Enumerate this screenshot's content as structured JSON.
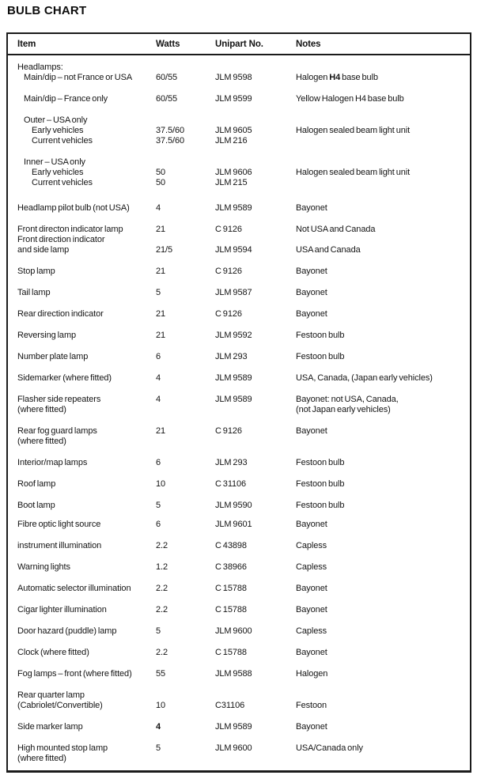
{
  "title": "BULB CHART",
  "table": {
    "columns": [
      "Item",
      "Watts",
      "Unipart No.",
      "Notes"
    ],
    "lines": [
      {
        "item": "Headlamps:",
        "indent": 0,
        "gap": "first"
      },
      {
        "item": "Main/dip – not France or USA",
        "watts": "60/55",
        "unipart": "JLM 9598",
        "notes": "Halogen H4 base bulb",
        "notes_bold": "H4",
        "indent": 1,
        "gap": "none"
      },
      {
        "item": "Main/dip – France only",
        "watts": "60/55",
        "unipart": "JLM 9599",
        "notes": "Yellow Halogen H4 base bulb",
        "indent": 1,
        "gap": "row"
      },
      {
        "item": "Outer – USA only",
        "indent": 1,
        "gap": "row"
      },
      {
        "item": "Early vehicles",
        "watts": "37.5/60",
        "unipart": "JLM 9605",
        "notes": "Halogen sealed beam light unit",
        "indent": 2,
        "gap": "none"
      },
      {
        "item": "Current vehicles",
        "watts": "37.5/60",
        "unipart": "JLM 216",
        "indent": 2,
        "gap": "none"
      },
      {
        "item": "Inner – USA only",
        "indent": 1,
        "gap": "row"
      },
      {
        "item": "Early vehicles",
        "watts": "50",
        "unipart": "JLM 9606",
        "notes": "Halogen sealed beam light unit",
        "indent": 2,
        "gap": "none"
      },
      {
        "item": "Current vehicles",
        "watts": "50",
        "unipart": "JLM 215",
        "indent": 2,
        "gap": "none"
      },
      {
        "item": "Headlamp pilot bulb (not USA)",
        "watts": "4",
        "unipart": "JLM 9589",
        "notes": "Bayonet",
        "indent": 0,
        "gap": "large"
      },
      {
        "item": "Front directon indicator lamp",
        "watts": "21",
        "unipart": "C 9126",
        "notes": "Not USA and Canada",
        "indent": 0,
        "gap": "row"
      },
      {
        "item": "Front direction indicator",
        "indent": 0,
        "gap": "none"
      },
      {
        "item": "and side lamp",
        "watts": "21/5",
        "unipart": "JLM 9594",
        "notes": "USA and Canada",
        "indent": 0,
        "gap": "none"
      },
      {
        "item": "Stop lamp",
        "watts": "21",
        "unipart": "C 9126",
        "notes": "Bayonet",
        "indent": 0,
        "gap": "row"
      },
      {
        "item": "Tail lamp",
        "watts": "5",
        "unipart": "JLM 9587",
        "notes": "Bayonet",
        "indent": 0,
        "gap": "row"
      },
      {
        "item": "Rear direction indicator",
        "watts": "21",
        "unipart": "C 9126",
        "notes": "Bayonet",
        "indent": 0,
        "gap": "row"
      },
      {
        "item": "Reversing lamp",
        "watts": "21",
        "unipart": "JLM 9592",
        "notes": "Festoon bulb",
        "indent": 0,
        "gap": "row"
      },
      {
        "item": "Number plate lamp",
        "watts": "6",
        "unipart": "JLM 293",
        "notes": "Festoon bulb",
        "indent": 0,
        "gap": "row"
      },
      {
        "item": "Sidemarker (where fitted)",
        "watts": "4",
        "unipart": "JLM 9589",
        "notes": "USA, Canada, (Japan early vehicles)",
        "indent": 0,
        "gap": "row"
      },
      {
        "item": "Flasher side repeaters",
        "watts": "4",
        "unipart": "JLM 9589",
        "notes": "Bayonet: not USA, Canada,",
        "indent": 0,
        "gap": "row"
      },
      {
        "item": "(where fitted)",
        "notes": "(not Japan early vehicles)",
        "indent": 0,
        "gap": "none"
      },
      {
        "item": "Rear fog guard lamps",
        "watts": "21",
        "unipart": "C 9126",
        "notes": "Bayonet",
        "indent": 0,
        "gap": "row"
      },
      {
        "item": "(where fitted)",
        "indent": 0,
        "gap": "none"
      },
      {
        "item": "Interior/map lamps",
        "watts": "6",
        "unipart": "JLM 293",
        "notes": "Festoon bulb",
        "indent": 0,
        "gap": "row"
      },
      {
        "item": "Roof lamp",
        "watts": "10",
        "unipart": "C 31106",
        "notes": "Festoon bulb",
        "indent": 0,
        "gap": "row"
      },
      {
        "item": "Boot lamp",
        "watts": "5",
        "unipart": "JLM 9590",
        "notes": "Festoon bulb",
        "indent": 0,
        "gap": "row"
      },
      {
        "item": "Fibre optic light source",
        "watts": "6",
        "unipart": "JLM 9601",
        "notes": "Bayonet",
        "indent": 0,
        "gap": "small"
      },
      {
        "item": "instrument illumination",
        "watts": "2.2",
        "unipart": "C 43898",
        "notes": "Capless",
        "indent": 0,
        "gap": "row"
      },
      {
        "item": "Warning lights",
        "watts": "1.2",
        "unipart": "C 38966",
        "notes": "Capless",
        "indent": 0,
        "gap": "row"
      },
      {
        "item": "Automatic selector illumination",
        "watts": "2.2",
        "unipart": "C 15788",
        "notes": "Bayonet",
        "indent": 0,
        "gap": "row"
      },
      {
        "item": "Cigar lighter illumination",
        "watts": "2.2",
        "unipart": "C 15788",
        "notes": "Bayonet",
        "indent": 0,
        "gap": "row"
      },
      {
        "item": "Door hazard (puddle) lamp",
        "watts": "5",
        "unipart": "JLM 9600",
        "notes": "Capless",
        "indent": 0,
        "gap": "row"
      },
      {
        "item": "Clock (where fitted)",
        "watts": "2.2",
        "unipart": "C 15788",
        "notes": "Bayonet",
        "indent": 0,
        "gap": "row"
      },
      {
        "item": "Fog lamps – front (where fitted)",
        "watts": "55",
        "unipart": "JLM 9588",
        "notes": "Halogen",
        "indent": 0,
        "gap": "row"
      },
      {
        "item": "Rear quarter lamp",
        "indent": 0,
        "gap": "row"
      },
      {
        "item": "(Cabriolet/Convertible)",
        "watts": "10",
        "unipart": "C31106",
        "notes": "Festoon",
        "indent": 0,
        "gap": "none"
      },
      {
        "item": "Side marker lamp",
        "watts": "4",
        "watts_bold": true,
        "unipart": "JLM 9589",
        "notes": "Bayonet",
        "indent": 0,
        "gap": "row"
      },
      {
        "item": "High mounted stop lamp",
        "watts": "5",
        "unipart": "JLM 9600",
        "notes": "USA/Canada only",
        "indent": 0,
        "gap": "row"
      },
      {
        "item": "(where fitted)",
        "indent": 0,
        "gap": "none"
      }
    ]
  }
}
